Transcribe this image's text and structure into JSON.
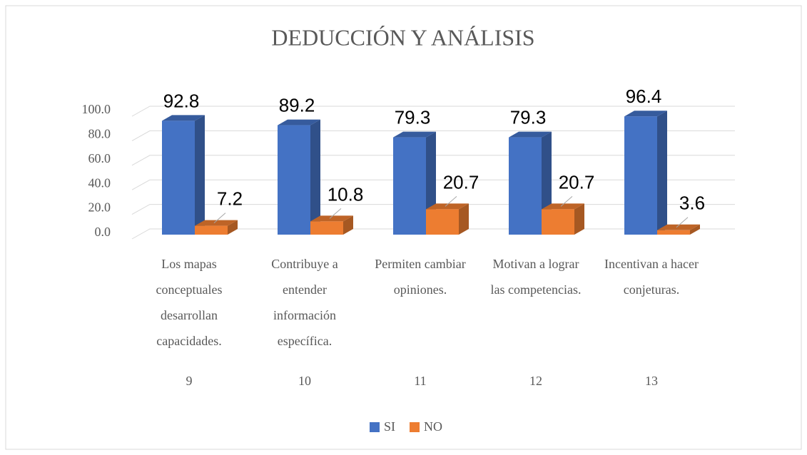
{
  "chart_data": {
    "type": "bar3d",
    "title": "DEDUCCIÓN Y ANÁLISIS",
    "categories": [
      "Los mapas conceptuales desarrollan capacidades.",
      "Contribuye a entender información específica.",
      "Permiten cambiar opiniones.",
      "Motivan a lograr las competencias.",
      "Incentivan a hacer conjeturas."
    ],
    "category_numbers": [
      9,
      10,
      11,
      12,
      13
    ],
    "series": [
      {
        "name": "SI",
        "color": "#4472c4",
        "values": [
          92.8,
          89.2,
          79.3,
          79.3,
          96.4
        ]
      },
      {
        "name": "NO",
        "color": "#ed7d31",
        "values": [
          7.2,
          10.8,
          20.7,
          20.7,
          3.6
        ]
      }
    ],
    "ylim": [
      0,
      100
    ],
    "yticks": [
      {
        "value": 0,
        "label": "0.0"
      },
      {
        "value": 20,
        "label": "20.0"
      },
      {
        "value": 40,
        "label": "40.0"
      },
      {
        "value": 60,
        "label": "60.0"
      },
      {
        "value": 80,
        "label": "80.0"
      },
      {
        "value": 100,
        "label": "100.0"
      }
    ],
    "grid": true,
    "legend": "bottom"
  }
}
